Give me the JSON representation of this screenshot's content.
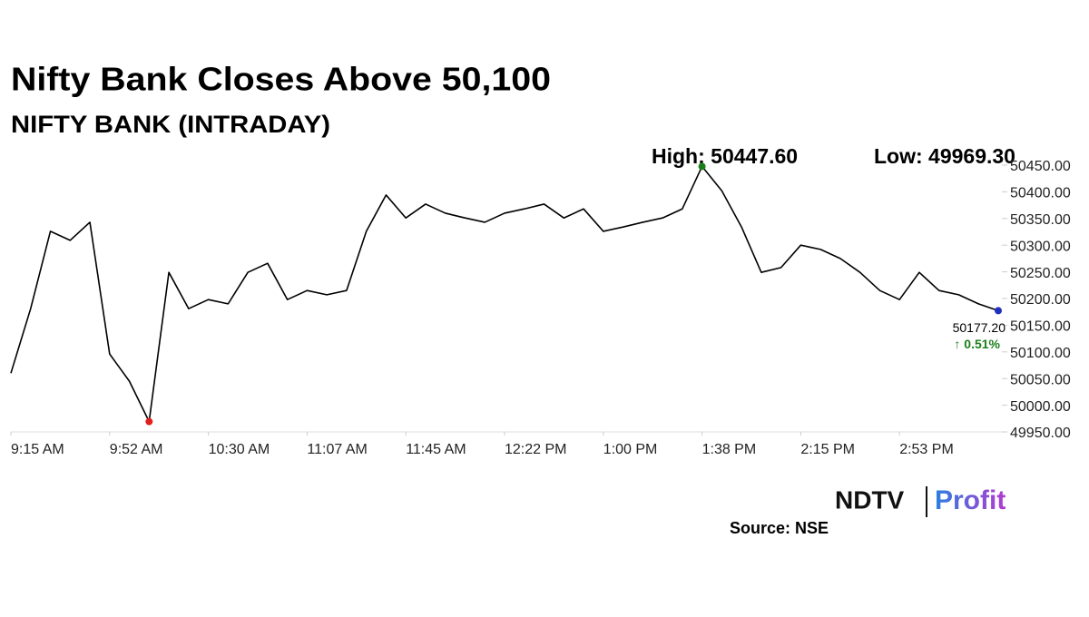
{
  "chart_data": {
    "type": "line",
    "title": "Nifty Bank Closes Above 50,100",
    "subtitle": "NIFTY BANK (INTRADAY)",
    "categories": [
      "9:15 AM",
      null,
      null,
      null,
      null,
      "9:52 AM",
      null,
      null,
      null,
      null,
      "10:30 AM",
      null,
      null,
      null,
      null,
      "11:07 AM",
      null,
      null,
      null,
      null,
      "11:45 AM",
      null,
      null,
      null,
      null,
      "12:22 PM",
      null,
      null,
      null,
      null,
      "1:00 PM",
      null,
      null,
      null,
      null,
      "1:38 PM",
      null,
      null,
      null,
      null,
      "2:15 PM",
      null,
      null,
      null,
      null,
      "2:53 PM",
      null,
      null,
      null,
      null,
      null
    ],
    "series": [
      {
        "name": "NIFTY BANK",
        "color": "#000000",
        "values": [
          50060,
          50181,
          50326,
          50309,
          50343,
          50096,
          50045,
          49969.3,
          50249,
          50181,
          50198,
          50190,
          50249,
          50266,
          50198,
          50215,
          50207,
          50215,
          50326,
          50394,
          50351,
          50377,
          50360,
          50351,
          50343,
          50360,
          50368,
          50377,
          50351,
          50368,
          50326,
          50334,
          50343,
          50351,
          50368,
          50447.6,
          50402,
          50334,
          50249,
          50258,
          50300,
          50292,
          50275,
          50249,
          50215,
          50198,
          50249,
          50215,
          50207,
          50190,
          50177.2
        ]
      }
    ],
    "ylim": [
      49950,
      50450
    ],
    "yticks": [
      {
        "value": 49950,
        "label": "49950.00"
      },
      {
        "value": 50000,
        "label": "50000.00"
      },
      {
        "value": 50050,
        "label": "50050.00"
      },
      {
        "value": 50100,
        "label": "50100.00"
      },
      {
        "value": 50150,
        "label": "50150.00"
      },
      {
        "value": 50200,
        "label": "50200.00"
      },
      {
        "value": 50250,
        "label": "50250.00"
      },
      {
        "value": 50300,
        "label": "50300.00"
      },
      {
        "value": 50350,
        "label": "50350.00"
      },
      {
        "value": 50400,
        "label": "50400.00"
      },
      {
        "value": 50450,
        "label": "50450.00"
      }
    ],
    "annotations": {
      "high": "High: 50447.60",
      "low": "Low: 49969.30",
      "last": "50177.20",
      "change": "↑ 0.51%"
    },
    "high_color": "#1a7f1a",
    "low_color": "#e0201e",
    "last_color": "#1f2fbf",
    "change_color": "#1a7f1a",
    "logo": {
      "left": "NDTV",
      "right": "Profit"
    },
    "source": "Source: NSE"
  }
}
